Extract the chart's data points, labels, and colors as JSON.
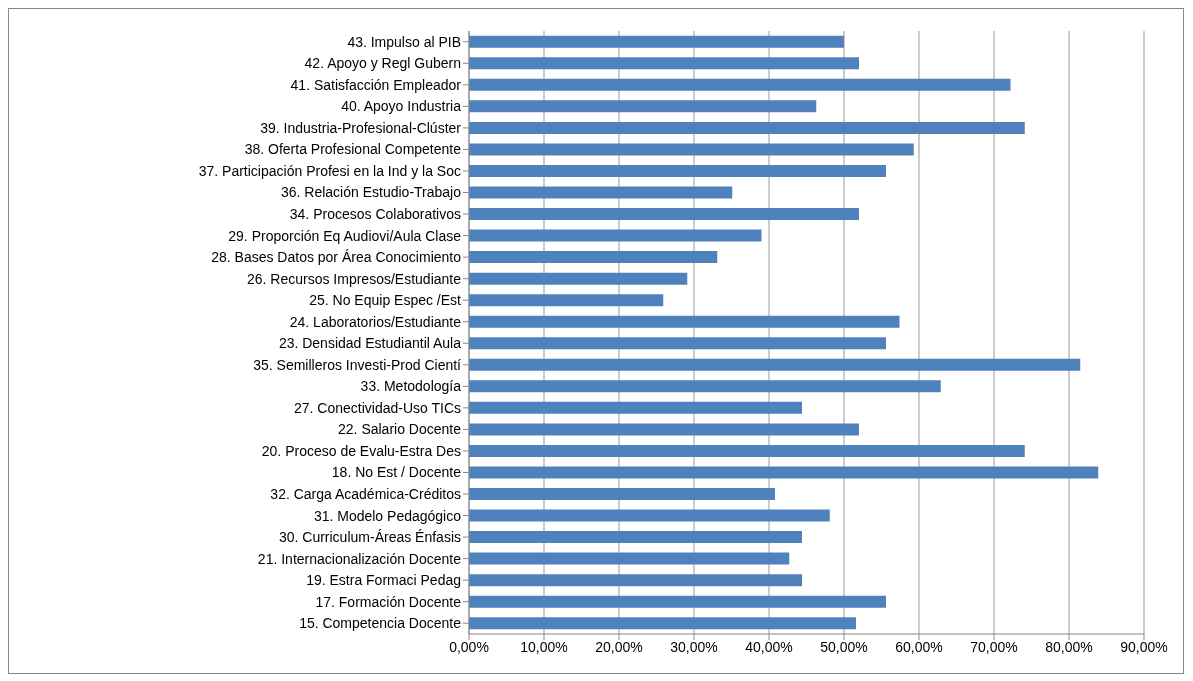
{
  "chart_data": {
    "type": "bar",
    "orientation": "horizontal",
    "categories": [
      "43. Impulso al PIB",
      "42. Apoyo y Regl Gubern",
      "41. Satisfacción Empleador",
      "40. Apoyo Industria",
      "39. Industria-Profesional-Clúster",
      "38. Oferta Profesional  Competente",
      "37. Participación Profesi  en la Ind y la Soc",
      "36. Relación Estudio-Trabajo",
      "34. Procesos Colaborativos",
      "29. Proporción Eq Audiovi/Aula Clase",
      "28. Bases Datos por Área Conocimiento",
      "26. Recursos Impresos/Estudiante",
      "25. No Equip Espec /Est",
      "24. Laboratorios/Estudiante",
      "23. Densidad Estudiantil Aula",
      "35. Semilleros Investi-Prod Cientí",
      "33. Metodología",
      "27. Conectividad-Uso TICs",
      "22. Salario Docente",
      "20. Proceso de Evalu-Estra Des",
      "18. No Est / Docente",
      "32. Carga Académica-Créditos",
      "31. Modelo Pedagógico",
      "30. Curriculum-Áreas Énfasis",
      "21. Internacionalización Docente",
      "19. Estra Formaci Pedag",
      "17. Formación Docente",
      "15. Competencia Docente"
    ],
    "values": [
      50,
      52,
      72.2,
      46.3,
      74.1,
      59.3,
      55.6,
      35.1,
      52,
      39,
      33.1,
      29.1,
      25.9,
      57.4,
      55.6,
      81.5,
      62.9,
      44.4,
      52,
      74.1,
      83.9,
      40.8,
      48.1,
      44.4,
      42.7,
      44.4,
      55.6,
      51.6
    ],
    "color": "#4f81bd",
    "xlim": [
      0,
      90
    ],
    "xticks": [
      {
        "value": 0,
        "label": "0,00%"
      },
      {
        "value": 10,
        "label": "10,00%"
      },
      {
        "value": 20,
        "label": "20,00%"
      },
      {
        "value": 30,
        "label": "30,00%"
      },
      {
        "value": 40,
        "label": "40,00%"
      },
      {
        "value": 50,
        "label": "50,00%"
      },
      {
        "value": 60,
        "label": "60,00%"
      },
      {
        "value": 70,
        "label": "70,00%"
      },
      {
        "value": 80,
        "label": "80,00%"
      },
      {
        "value": 90,
        "label": "90,00%"
      }
    ],
    "grid": "x"
  }
}
